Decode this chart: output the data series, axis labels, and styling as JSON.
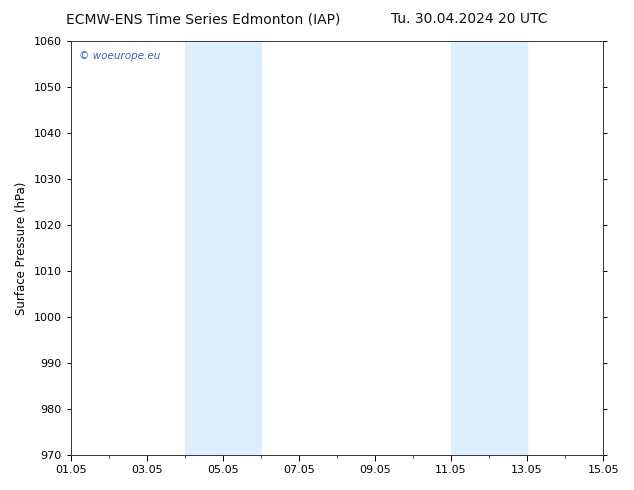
{
  "title_left": "ECMW-ENS Time Series Edmonton (IAP)",
  "title_right": "Tu. 30.04.2024 20 UTC",
  "ylabel": "Surface Pressure (hPa)",
  "ylim": [
    970,
    1060
  ],
  "yticks": [
    970,
    980,
    990,
    1000,
    1010,
    1020,
    1030,
    1040,
    1050,
    1060
  ],
  "xlim_start": 0,
  "xlim_end": 14,
  "xtick_labels": [
    "01.05",
    "03.05",
    "05.05",
    "07.05",
    "09.05",
    "11.05",
    "13.05",
    "15.05"
  ],
  "xtick_positions": [
    0,
    2,
    4,
    6,
    8,
    10,
    12,
    14
  ],
  "shaded_bands": [
    {
      "x_start": 3.0,
      "x_end": 5.0
    },
    {
      "x_start": 10.0,
      "x_end": 12.0
    }
  ],
  "shade_color": "#ddeeff",
  "background_color": "#ffffff",
  "plot_bg_color": "#ffffff",
  "watermark_text": "© woeurope.eu",
  "watermark_color": "#3366cc",
  "title_fontsize": 10,
  "axis_label_fontsize": 8.5,
  "tick_fontsize": 8
}
